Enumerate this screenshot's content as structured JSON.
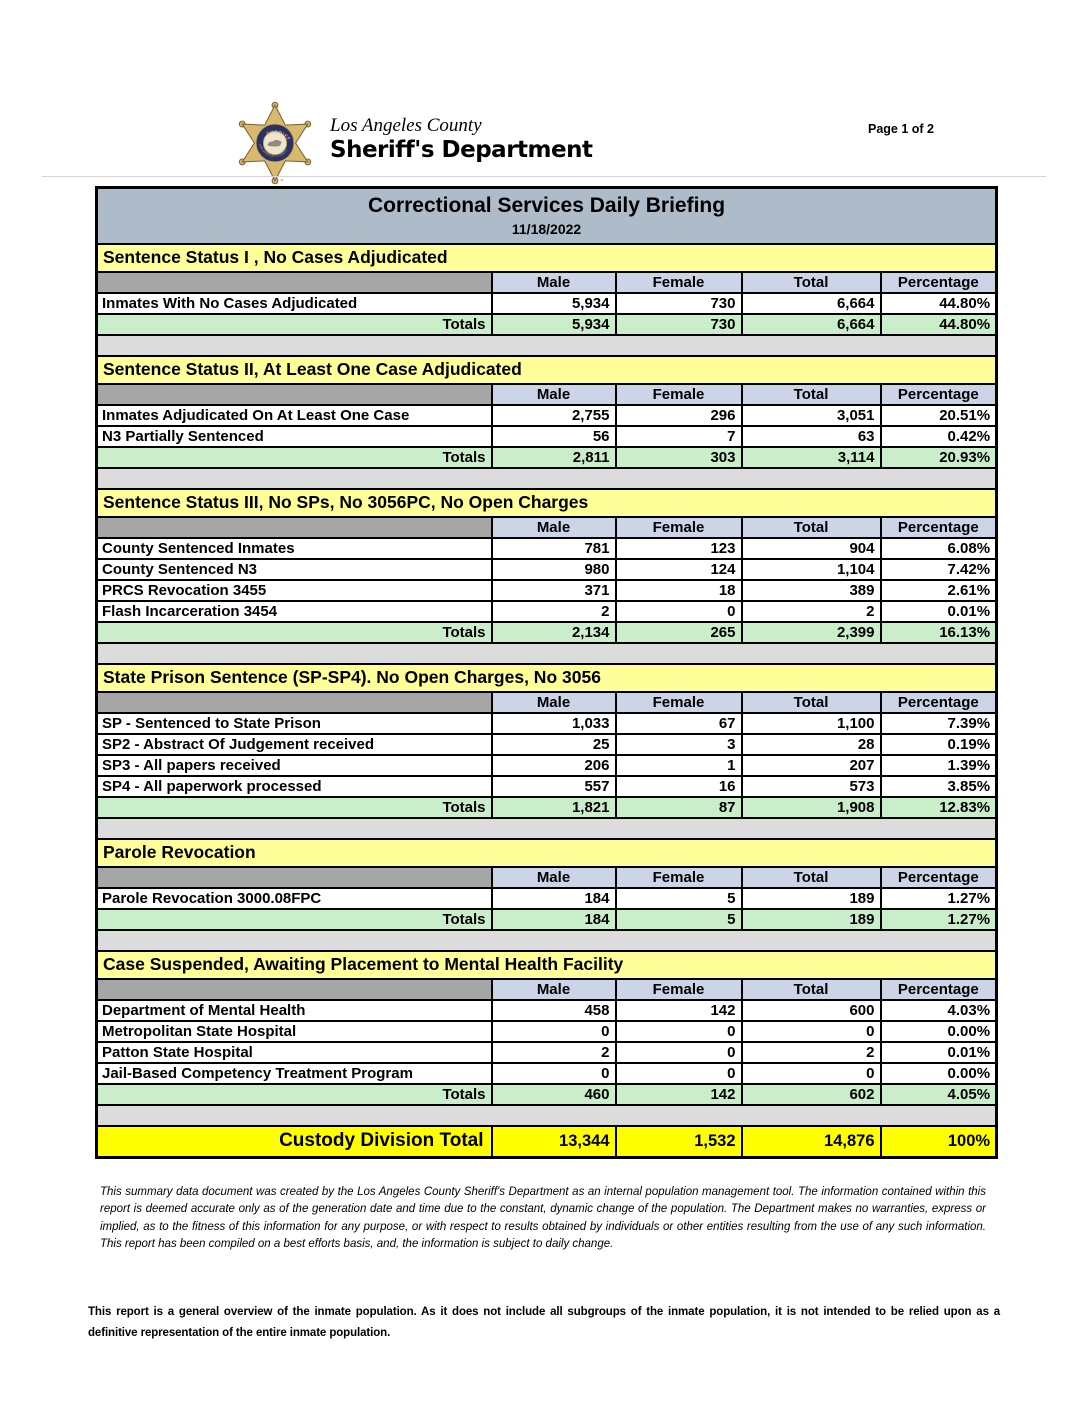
{
  "page": {
    "page_label": "Page 1 of 2"
  },
  "header": {
    "agency_line1": "Los Angeles County",
    "agency_line2": "Sheriff's Department",
    "logo": "lasd-star-badge"
  },
  "report": {
    "title": "Correctional Services Daily Briefing",
    "date": "11/18/2022"
  },
  "columns": [
    "Male",
    "Female",
    "Total",
    "Percentage"
  ],
  "totals_label": "Totals",
  "sections": [
    {
      "title": "Sentence Status I , No Cases Adjudicated",
      "rows": [
        {
          "label": "Inmates With No Cases Adjudicated",
          "male": "5,934",
          "female": "730",
          "total": "6,664",
          "pct": "44.80%"
        }
      ],
      "totals": {
        "male": "5,934",
        "female": "730",
        "total": "6,664",
        "pct": "44.80%"
      }
    },
    {
      "title": "Sentence Status II, At Least One Case Adjudicated",
      "rows": [
        {
          "label": "Inmates Adjudicated On At Least One Case",
          "male": "2,755",
          "female": "296",
          "total": "3,051",
          "pct": "20.51%"
        },
        {
          "label": "N3 Partially Sentenced",
          "male": "56",
          "female": "7",
          "total": "63",
          "pct": "0.42%"
        }
      ],
      "totals": {
        "male": "2,811",
        "female": "303",
        "total": "3,114",
        "pct": "20.93%"
      }
    },
    {
      "title": "Sentence Status III, No SPs, No 3056PC, No Open Charges",
      "rows": [
        {
          "label": "County Sentenced Inmates",
          "male": "781",
          "female": "123",
          "total": "904",
          "pct": "6.08%"
        },
        {
          "label": "County Sentenced N3",
          "male": "980",
          "female": "124",
          "total": "1,104",
          "pct": "7.42%"
        },
        {
          "label": "PRCS Revocation 3455",
          "male": "371",
          "female": "18",
          "total": "389",
          "pct": "2.61%"
        },
        {
          "label": "Flash Incarceration 3454",
          "male": "2",
          "female": "0",
          "total": "2",
          "pct": "0.01%"
        }
      ],
      "totals": {
        "male": "2,134",
        "female": "265",
        "total": "2,399",
        "pct": "16.13%"
      }
    },
    {
      "title": "State Prison Sentence (SP-SP4). No Open Charges, No 3056",
      "rows": [
        {
          "label": "SP - Sentenced to State Prison",
          "male": "1,033",
          "female": "67",
          "total": "1,100",
          "pct": "7.39%"
        },
        {
          "label": "SP2 - Abstract Of Judgement received",
          "male": "25",
          "female": "3",
          "total": "28",
          "pct": "0.19%"
        },
        {
          "label": "SP3 - All papers received",
          "male": "206",
          "female": "1",
          "total": "207",
          "pct": "1.39%"
        },
        {
          "label": "SP4 - All paperwork processed",
          "male": "557",
          "female": "16",
          "total": "573",
          "pct": "3.85%"
        }
      ],
      "totals": {
        "male": "1,821",
        "female": "87",
        "total": "1,908",
        "pct": "12.83%"
      }
    },
    {
      "title": "Parole Revocation",
      "rows": [
        {
          "label": "Parole Revocation 3000.08FPC",
          "male": "184",
          "female": "5",
          "total": "189",
          "pct": "1.27%"
        }
      ],
      "totals": {
        "male": "184",
        "female": "5",
        "total": "189",
        "pct": "1.27%"
      }
    },
    {
      "title": "Case Suspended, Awaiting Placement to Mental Health Facility",
      "rows": [
        {
          "label": "Department of Mental Health",
          "male": "458",
          "female": "142",
          "total": "600",
          "pct": "4.03%"
        },
        {
          "label": "Metropolitan State Hospital",
          "male": "0",
          "female": "0",
          "total": "0",
          "pct": "0.00%"
        },
        {
          "label": "Patton State Hospital",
          "male": "2",
          "female": "0",
          "total": "2",
          "pct": "0.01%"
        },
        {
          "label": "Jail-Based Competency Treatment Program",
          "male": "0",
          "female": "0",
          "total": "0",
          "pct": "0.00%"
        }
      ],
      "totals": {
        "male": "460",
        "female": "142",
        "total": "602",
        "pct": "4.05%"
      }
    }
  ],
  "grand_total": {
    "label": "Custody Division Total",
    "male": "13,344",
    "female": "1,532",
    "total": "14,876",
    "pct": "100%"
  },
  "disclaimer": "This summary data document was created by the Los Angeles County Sheriff's Department as an internal population management tool.  The information contained within this report is deemed accurate only as of the generation date and time due to the constant, dynamic change of the population.  The Department makes no warranties, express or implied, as to the fitness of this information for any purpose, or with respect to results obtained by individuals or other entities resulting from the use of any such information.  This report has been compiled on a best efforts basis, and, the information is subject to daily change.",
  "footnote": "This report is a general overview of the inmate population.  As it does not include all subgroups of the inmate population, it is not intended to be relied upon as a definitive representation of the entire inmate population.",
  "colors": {
    "title_bg": "#aebcca",
    "section_bg": "#ffff99",
    "column_bg": "#ccd4e8",
    "totals_bg": "#c9eec9",
    "grand_bg": "#ffff00",
    "spacer_bg": "#dcdcdc",
    "corner_bg": "#a6a6a6"
  }
}
